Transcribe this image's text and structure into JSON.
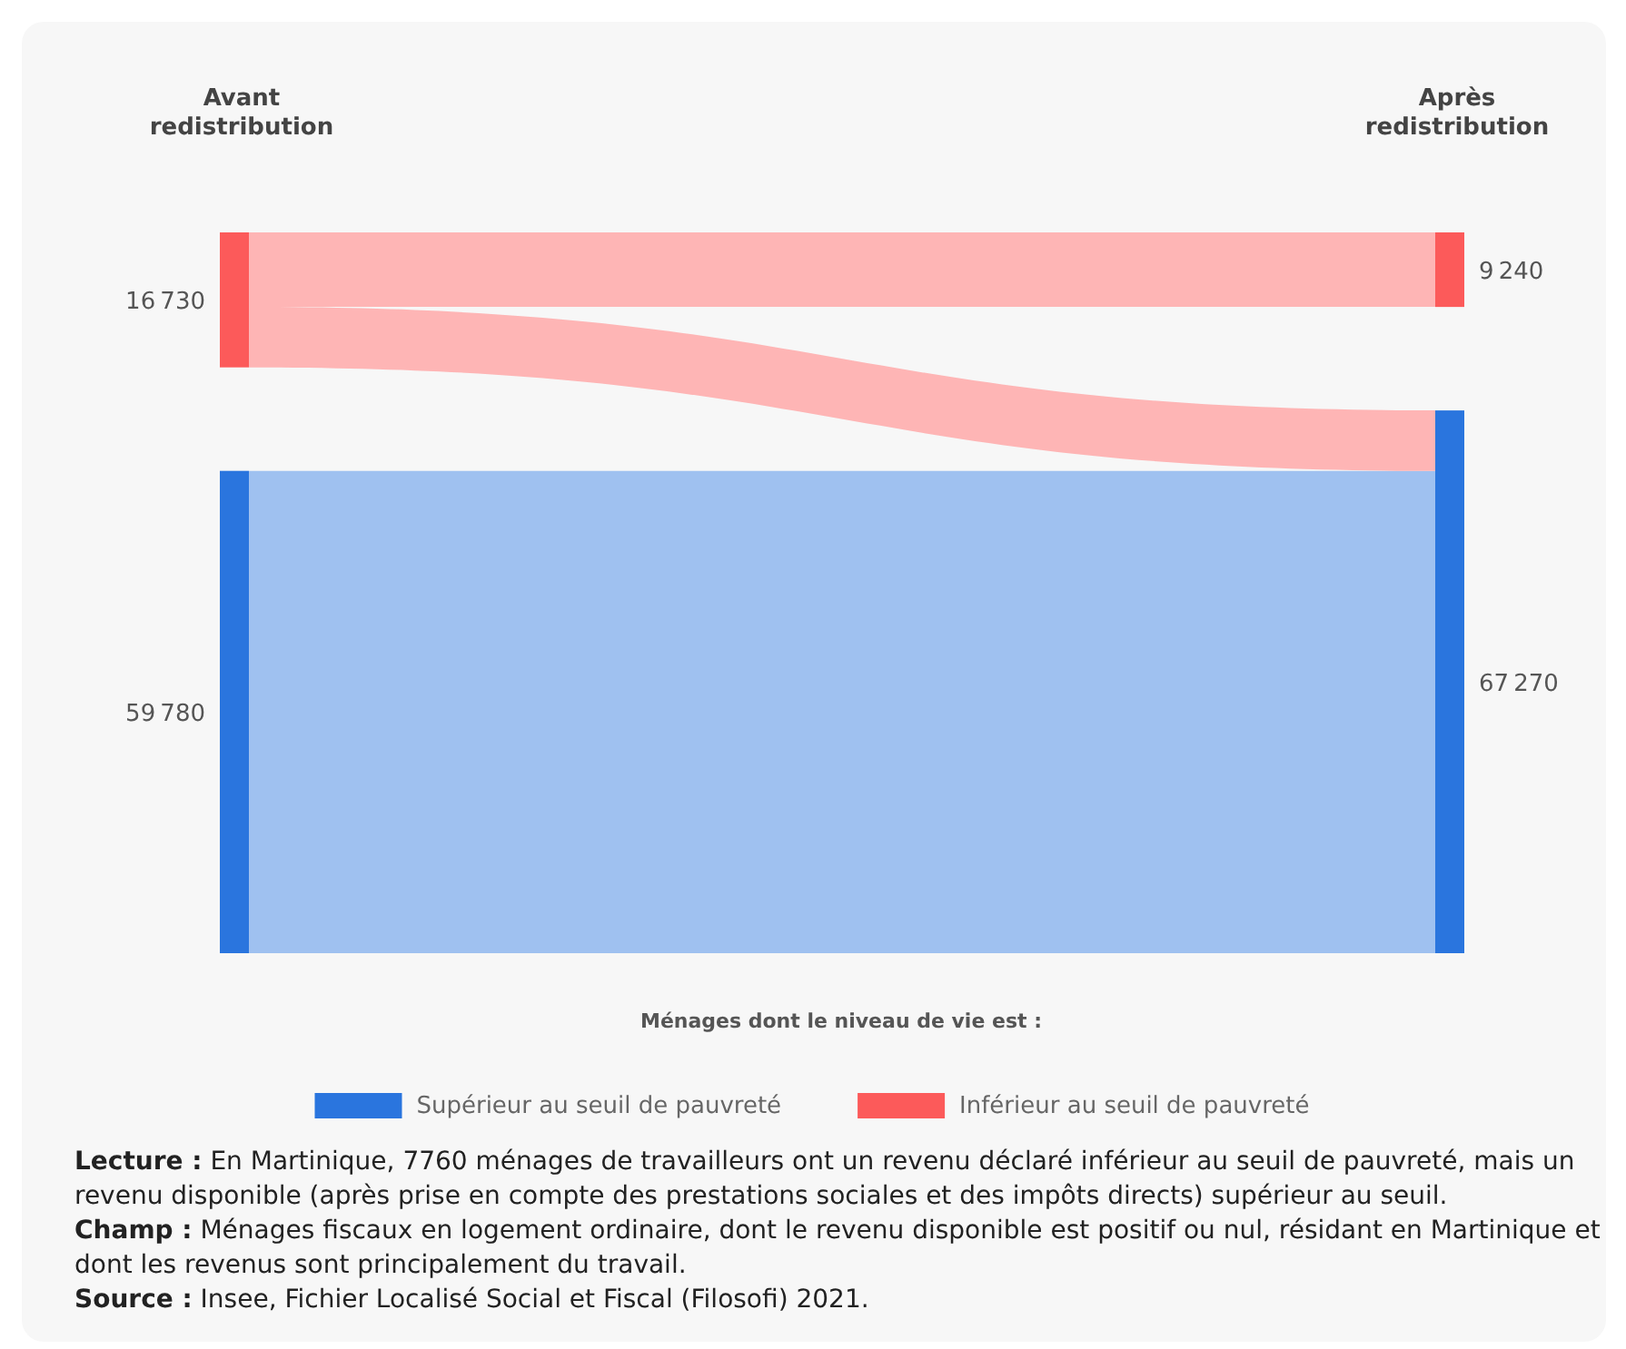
{
  "chart_data": {
    "type": "other",
    "categories": [
      "Avant redistribution",
      "Après redistribution"
    ],
    "legend_title": "Ménages dont le niveau de vie est :",
    "legend": "bottom",
    "data_labels": true,
    "series": [
      {
        "name": "Supérieur au seuil de pauvreté",
        "color": "#2a75de",
        "values": [
          59780,
          67270
        ]
      },
      {
        "name": "Inférieur au seuil de pauvreté",
        "color": "#fc5a5a",
        "values": [
          16730,
          9240
        ]
      }
    ],
    "annotations": [
      "Lecture : En Martinique, 7760 ménages de travailleurs ont un revenu déclaré inférieur au seuil de pauvreté, mais un revenu disponible (après prise en compte des prestations sociales et des impôts directs) supérieur au seuil.",
      "Champ : Ménages fiscaux en logement ordinaire, dont le revenu disponible est positif ou nul, résidant en Martinique et dont les revenus sont principalement du travail.",
      "Source : Insee, Fichier Localisé Social et Fiscal (Filosofi) 2021."
    ]
  }
}
